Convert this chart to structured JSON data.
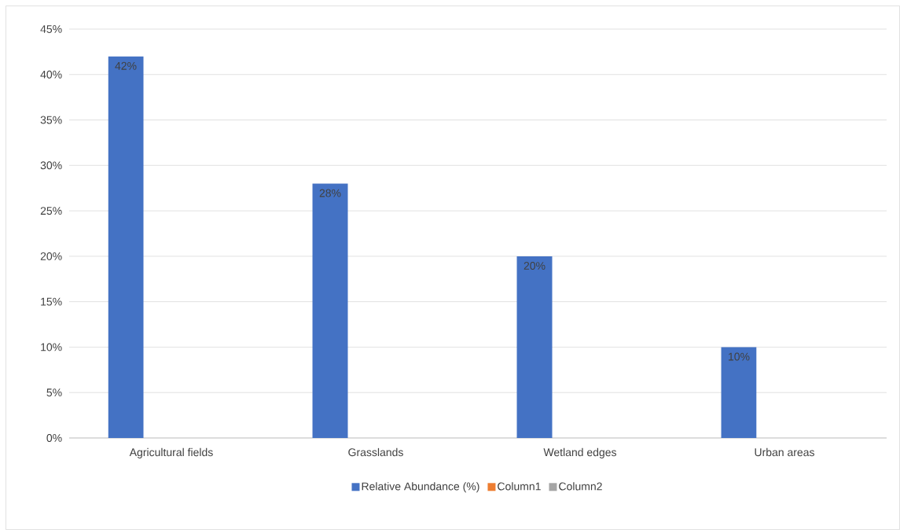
{
  "chart_data": {
    "type": "bar",
    "categories": [
      "Agricultural fields",
      "Grasslands",
      "Wetland edges",
      "Urban areas"
    ],
    "series": [
      {
        "name": "Relative Abundance (%)",
        "color": "#4472c4",
        "values": [
          42,
          28,
          20,
          10
        ],
        "value_labels": [
          "42%",
          "28%",
          "20%",
          "10%"
        ]
      },
      {
        "name": "Column1",
        "color": "#ed7d31",
        "values": [
          null,
          null,
          null,
          null
        ]
      },
      {
        "name": "Column2",
        "color": "#a5a5a5",
        "values": [
          null,
          null,
          null,
          null
        ]
      }
    ],
    "ylim": [
      0,
      45
    ],
    "yticks": [
      {
        "value": 0,
        "label": "0%"
      },
      {
        "value": 5,
        "label": "5%"
      },
      {
        "value": 10,
        "label": "10%"
      },
      {
        "value": 15,
        "label": "15%"
      },
      {
        "value": 20,
        "label": "20%"
      },
      {
        "value": 25,
        "label": "25%"
      },
      {
        "value": 30,
        "label": "30%"
      },
      {
        "value": 35,
        "label": "35%"
      },
      {
        "value": 40,
        "label": "40%"
      },
      {
        "value": 45,
        "label": "45%"
      }
    ],
    "grid": "y",
    "legend": "bottom"
  }
}
